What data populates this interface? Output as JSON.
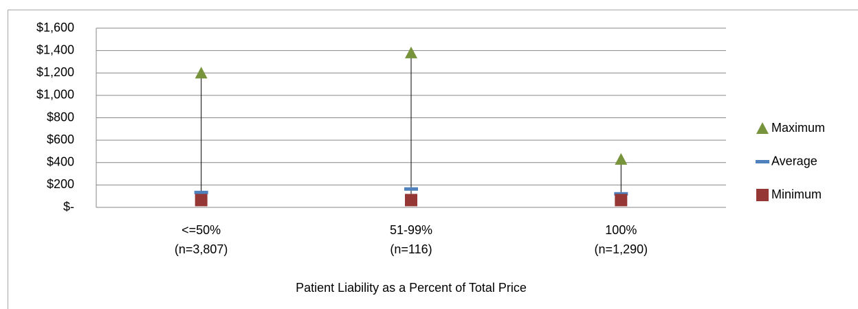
{
  "chart_data": {
    "type": "hilo",
    "x_label": "Patient Liability as a Percent of Total Price",
    "categories": [
      "<=50%\n(n=3,807)",
      "51-99%\n(n=116)",
      "100%\n(n=1,290)"
    ],
    "series": [
      {
        "name": "Maximum",
        "color": "#77933c",
        "marker": "triangle",
        "values": [
          1200,
          1380,
          430
        ]
      },
      {
        "name": "Average",
        "color": "#4f81bd",
        "marker": "dash",
        "values": [
          133,
          164,
          121
        ]
      },
      {
        "name": "Minimum",
        "color": "#953735",
        "marker": "square",
        "values": [
          65,
          65,
          65
        ]
      }
    ],
    "ylim": [
      0,
      1600
    ],
    "yticks": [
      {
        "value": 0,
        "label": "$-"
      },
      {
        "value": 200,
        "label": "$200"
      },
      {
        "value": 400,
        "label": "$400"
      },
      {
        "value": 600,
        "label": "$600"
      },
      {
        "value": 800,
        "label": "$800"
      },
      {
        "value": 1000,
        "label": "$1,000"
      },
      {
        "value": 1200,
        "label": "$1,200"
      },
      {
        "value": 1400,
        "label": "$1,400"
      },
      {
        "value": 1600,
        "label": "$1,600"
      }
    ],
    "grid": true,
    "legend": "right"
  }
}
